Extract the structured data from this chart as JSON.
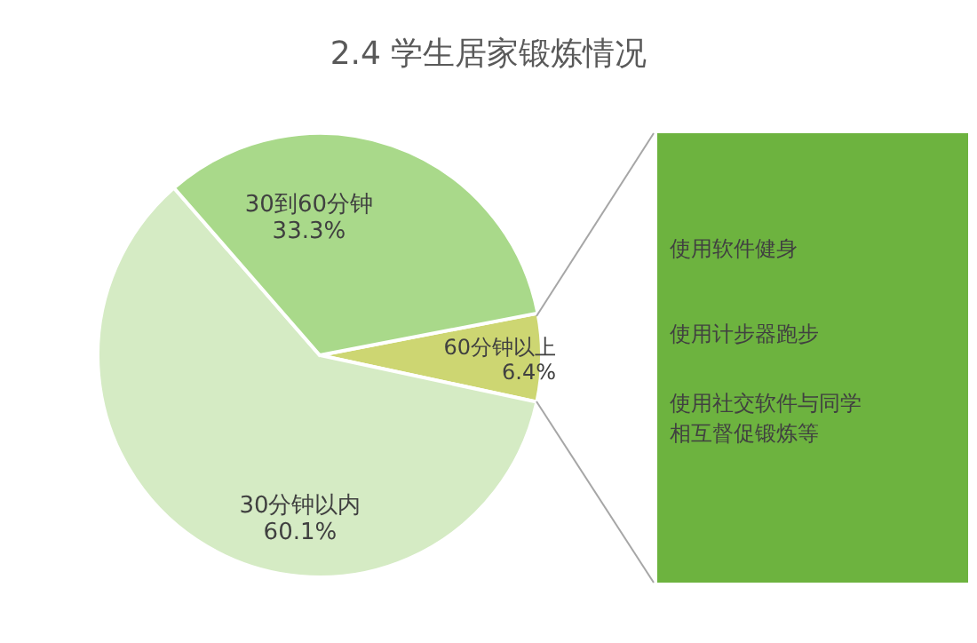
{
  "chart_data": {
    "type": "pie",
    "title": "2.4 学生居家锻炼情况",
    "categories": [
      "60分钟以上",
      "30分钟以内",
      "30到60分钟"
    ],
    "values": [
      6.4,
      60.1,
      33.3
    ],
    "value_labels": [
      "6.4%",
      "60.1%",
      "33.3%"
    ],
    "colors": [
      "#cdd672",
      "#d5ebc4",
      "#a9d98a"
    ],
    "annotations": [
      "使用软件健身",
      "使用计步器跑步",
      "使用社交软件与同学相互督促锻炼等"
    ],
    "legend": false
  }
}
